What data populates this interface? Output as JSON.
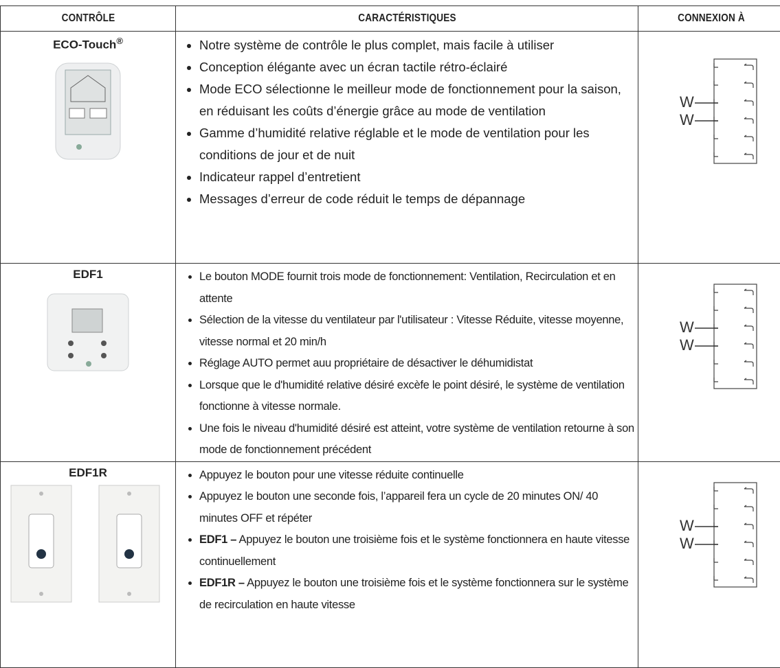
{
  "table": {
    "headers": [
      "CONTRÔLE",
      "CARACTÉRISTIQUES",
      "CONNEXION À"
    ],
    "rows": [
      {
        "name": "ECO-Touch",
        "sup": "®",
        "features": [
          "Notre système de contrôle le plus complet, mais facile à utiliser",
          "Conception élégante avec un écran tactile rétro-éclairé",
          "Mode ECO sélectionne le meilleur mode de fonctionnement pour la saison, en réduisant les coûts d’énergie grâce au mode de ventilation",
          "Gamme d’humidité relative réglable et le mode de ventilation pour les conditions de jour et de nuit",
          "Indicateur rappel d’entretient",
          "Messages d’erreur de code réduit le temps de dépannage"
        ],
        "wires": [
          "W",
          "W"
        ]
      },
      {
        "name": "EDF1",
        "features": [
          "Le bouton MODE fournit trois mode de fonctionnement: Ventilation, Recirculation et en attente",
          "Sélection de la vitesse du ventilateur par l'utilisateur : Vitesse Réduite, vitesse moyenne, vitesse normal et 20 min/h",
          "Réglage AUTO permet auu propriétaire de désactiver le déhumidistat",
          "Lorsque que le d'humidité relative désiré excèfe le point désiré, le système de ventilation fonctionne à vitesse normale.",
          "Une fois le niveau d'humidité désiré est atteint, votre système de ventilation retourne à son mode de fonctionnement précédent"
        ],
        "wires": [
          "W",
          "W"
        ]
      },
      {
        "name": "EDF1R",
        "features": [
          "Appuyez le bouton pour une vitesse réduite continuelle",
          "Appuyez le bouton une seconde fois, l’appareil fera un cycle de 20 minutes ON/ 40 minutes OFF et répéter",
          {
            "bold": "EDF1 –",
            "text": " Appuyez le bouton une troisième fois et le système fonctionnera en haute vitesse continuellement"
          },
          {
            "bold": "EDF1R –",
            "text": " Appuyez le bouton une troisième fois et le système fonctionnera sur le système de recirculation en haute vitesse"
          }
        ],
        "wires": [
          "W",
          "W"
        ]
      }
    ]
  }
}
